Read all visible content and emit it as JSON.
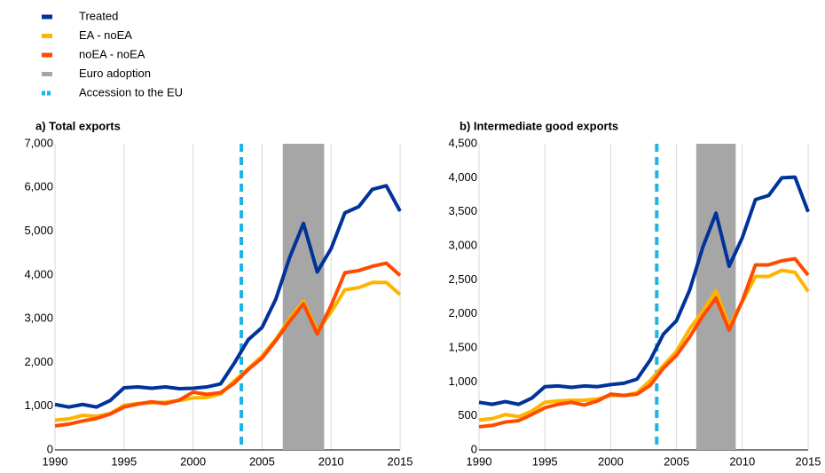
{
  "chart_data": [
    {
      "type": "line",
      "title": "a) Total exports",
      "x": [
        1990,
        1991,
        1992,
        1993,
        1994,
        1995,
        1996,
        1997,
        1998,
        1999,
        2000,
        2001,
        2002,
        2003,
        2004,
        2005,
        2006,
        2007,
        2008,
        2009,
        2010,
        2011,
        2012,
        2013,
        2014,
        2015
      ],
      "xlim": [
        1990,
        2015
      ],
      "xticks": [
        1990,
        1995,
        2000,
        2005,
        2010,
        2015
      ],
      "ylim": [
        0,
        7000
      ],
      "yticks": [
        0,
        {
          "value": 1000,
          "label": "1,000"
        },
        {
          "value": 2000,
          "label": "2,000"
        },
        {
          "value": 3000,
          "label": "3,000"
        },
        {
          "value": 4000,
          "label": "4,000"
        },
        {
          "value": 5000,
          "label": "5,000"
        },
        {
          "value": 6000,
          "label": "6,000"
        },
        {
          "value": 7000,
          "label": "7,000"
        }
      ],
      "grid": "x",
      "series": [
        {
          "name": "Treated",
          "color": "#003299",
          "values": [
            1040,
            980,
            1040,
            980,
            1130,
            1420,
            1440,
            1410,
            1440,
            1400,
            1410,
            1440,
            1510,
            1990,
            2520,
            2800,
            3450,
            4400,
            5180,
            4070,
            4600,
            5420,
            5560,
            5960,
            6040,
            5460
          ]
        },
        {
          "name": "EA - noEA",
          "color": "#ffb400",
          "values": [
            680,
            710,
            790,
            770,
            830,
            1020,
            1060,
            1080,
            1090,
            1130,
            1190,
            1200,
            1280,
            1580,
            1860,
            2150,
            2530,
            3000,
            3400,
            2720,
            3150,
            3660,
            3710,
            3830,
            3830,
            3550
          ]
        },
        {
          "name": "noEA - noEA",
          "color": "#ff4b00",
          "values": [
            550,
            590,
            660,
            720,
            820,
            980,
            1050,
            1100,
            1060,
            1140,
            1320,
            1270,
            1310,
            1530,
            1840,
            2100,
            2500,
            2940,
            3340,
            2650,
            3300,
            4050,
            4100,
            4200,
            4270,
            3990
          ]
        }
      ],
      "band": {
        "name": "Euro adoption",
        "x": [
          2006.5,
          2009.5
        ],
        "color": "#a6a6a6"
      },
      "vline": {
        "name": "Accession to the EU",
        "x": 2003.5,
        "color": "#1cb4e3"
      }
    },
    {
      "type": "line",
      "title": "b) Intermediate good exports",
      "x": [
        1990,
        1991,
        1992,
        1993,
        1994,
        1995,
        1996,
        1997,
        1998,
        1999,
        2000,
        2001,
        2002,
        2003,
        2004,
        2005,
        2006,
        2007,
        2008,
        2009,
        2010,
        2011,
        2012,
        2013,
        2014,
        2015
      ],
      "xlim": [
        1990,
        2015
      ],
      "xticks": [
        1990,
        1995,
        2000,
        2005,
        2010,
        2015
      ],
      "ylim": [
        0,
        4500
      ],
      "yticks": [
        0,
        500,
        {
          "value": 1000,
          "label": "1,000"
        },
        {
          "value": 1500,
          "label": "1,500"
        },
        {
          "value": 2000,
          "label": "2,000"
        },
        {
          "value": 2500,
          "label": "2,500"
        },
        {
          "value": 3000,
          "label": "3,000"
        },
        {
          "value": 3500,
          "label": "3,500"
        },
        {
          "value": 4000,
          "label": "4,000"
        },
        {
          "value": 4500,
          "label": "4,500"
        }
      ],
      "grid": "x",
      "series": [
        {
          "color": "#003299",
          "values": [
            700,
            670,
            710,
            670,
            760,
            930,
            940,
            920,
            940,
            930,
            960,
            980,
            1040,
            1320,
            1700,
            1900,
            2350,
            2980,
            3480,
            2700,
            3120,
            3680,
            3740,
            4000,
            4010,
            3500
          ]
        },
        {
          "color": "#ffb400",
          "values": [
            440,
            460,
            520,
            490,
            570,
            700,
            720,
            730,
            730,
            750,
            800,
            800,
            840,
            1020,
            1240,
            1450,
            1780,
            2040,
            2340,
            1820,
            2180,
            2550,
            2550,
            2640,
            2610,
            2330
          ]
        },
        {
          "color": "#ff4b00",
          "values": [
            340,
            360,
            410,
            430,
            520,
            620,
            670,
            700,
            660,
            720,
            820,
            800,
            820,
            950,
            1200,
            1390,
            1660,
            1970,
            2230,
            1760,
            2190,
            2720,
            2720,
            2780,
            2810,
            2570
          ]
        }
      ],
      "band": {
        "x": [
          2006.5,
          2009.5
        ],
        "color": "#a6a6a6"
      },
      "vline": {
        "x": 2003.5,
        "color": "#1cb4e3"
      }
    }
  ]
}
